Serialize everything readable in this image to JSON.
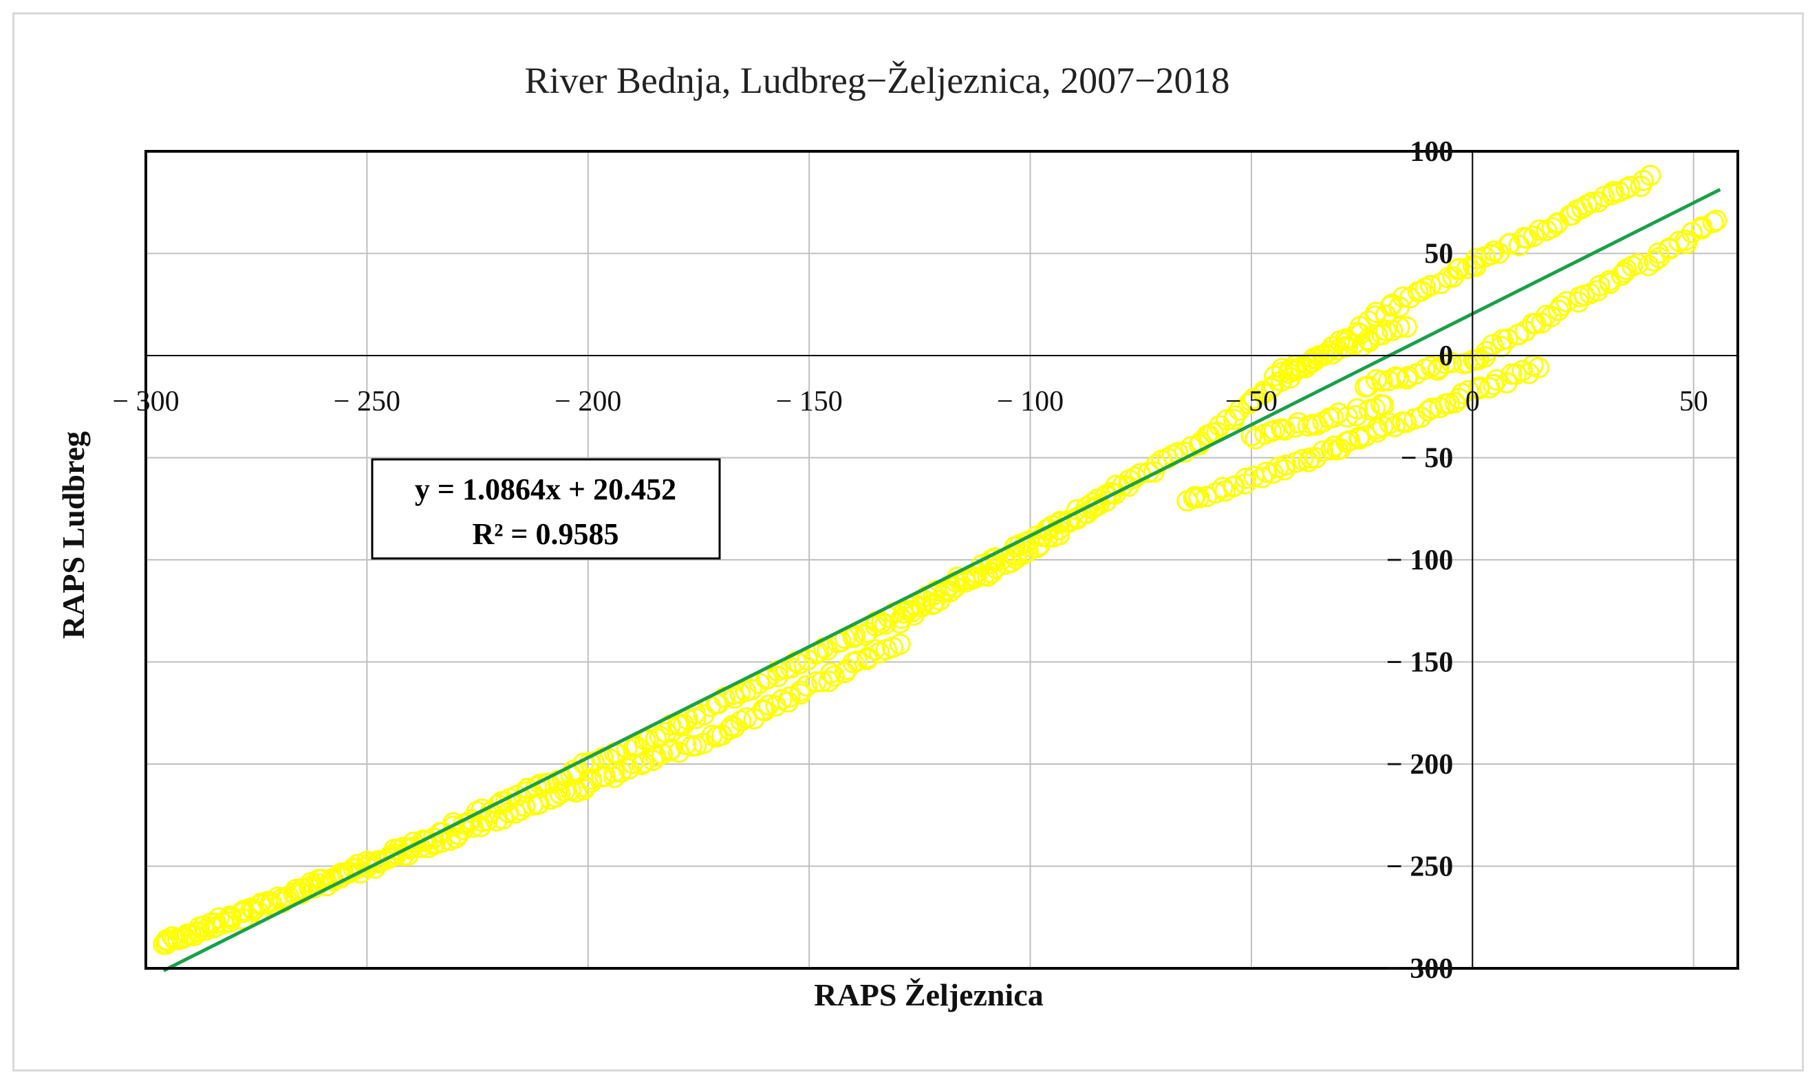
{
  "chart_data": {
    "type": "scatter",
    "title": "River Bednja, Ludbreg−Željeznica, 2007−2018",
    "xlabel": "RAPS Željeznica",
    "ylabel": "RAPS Ludbreg",
    "xlim": [
      -300,
      60
    ],
    "ylim": [
      -300,
      100
    ],
    "x_ticks": [
      -300,
      -250,
      -200,
      -150,
      -100,
      -50,
      0,
      50
    ],
    "x_tick_labels": [
      "− 300",
      "− 250",
      "− 200",
      "− 150",
      "− 100",
      "− 50",
      "0",
      "50"
    ],
    "y_ticks": [
      100,
      50,
      0,
      -50,
      -100,
      -150,
      -200,
      -250,
      -300
    ],
    "y_tick_labels": [
      "100",
      "50",
      "0",
      "− 50",
      "− 100",
      "− 150",
      "− 200",
      "− 250",
      "− 300"
    ],
    "grid": true,
    "marker_color": "#ffff00",
    "trendline_color": "#1aa04a",
    "trendline": {
      "slope": 1.0864,
      "intercept": 20.452
    },
    "annotation": {
      "line1": "y = 1.0864x + 20.452",
      "line2": "R² = 0.9585"
    },
    "series": [
      {
        "segments": [
          {
            "x0": -296,
            "y0": -288,
            "x1": -240,
            "y1": -240
          },
          {
            "x0": -240,
            "y0": -240,
            "x1": -180,
            "y1": -181
          },
          {
            "x0": -180,
            "y0": -181,
            "x1": -133,
            "y1": -130
          },
          {
            "x0": -133,
            "y0": -130,
            "x1": -95,
            "y1": -85
          },
          {
            "x0": -95,
            "y0": -85,
            "x1": -60,
            "y1": -40
          },
          {
            "x0": -60,
            "y0": -40,
            "x1": -42,
            "y1": -10
          },
          {
            "x0": -42,
            "y0": -10,
            "x1": -25,
            "y1": 12
          },
          {
            "x0": -25,
            "y0": 15,
            "x1": 0,
            "y1": 45
          },
          {
            "x0": 0,
            "y0": 45,
            "x1": 40,
            "y1": 87
          },
          {
            "x0": -296,
            "y0": -288,
            "x1": -255,
            "y1": -255
          },
          {
            "x0": -255,
            "y0": -255,
            "x1": -200,
            "y1": -210
          },
          {
            "x0": -200,
            "y0": -210,
            "x1": -170,
            "y1": -185
          },
          {
            "x0": -170,
            "y0": -185,
            "x1": -130,
            "y1": -140
          },
          {
            "x0": -130,
            "y0": -130,
            "x1": -100,
            "y1": -95
          },
          {
            "x0": -100,
            "y0": -95,
            "x1": -80,
            "y1": -65
          },
          {
            "x0": -65,
            "y0": -72,
            "x1": -30,
            "y1": -45
          },
          {
            "x0": -30,
            "y0": -45,
            "x1": 15,
            "y1": -5
          },
          {
            "x0": -25,
            "y0": -15,
            "x1": 0,
            "y1": -2
          },
          {
            "x0": 0,
            "y0": -2,
            "x1": 55,
            "y1": 65
          },
          {
            "x0": -50,
            "y0": -40,
            "x1": -20,
            "y1": -25
          },
          {
            "x0": -45,
            "y0": -10,
            "x1": -15,
            "y1": 15
          }
        ]
      }
    ]
  }
}
